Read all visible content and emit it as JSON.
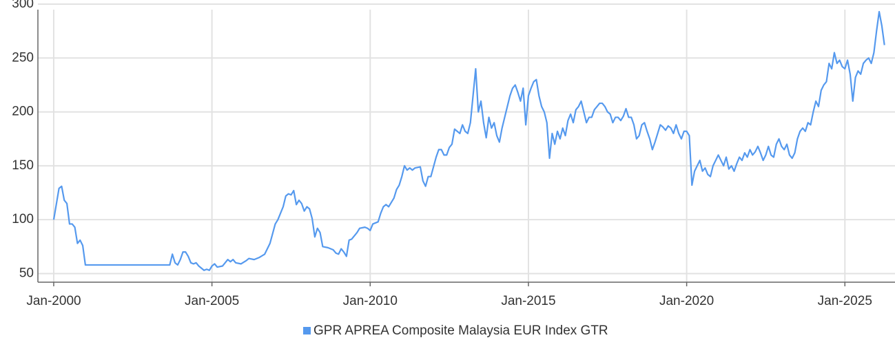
{
  "chart_data": {
    "type": "line",
    "x": [
      "2000-01",
      "2000-03",
      "2000-04",
      "2000-05",
      "2000-06",
      "2000-07",
      "2000-08",
      "2000-09",
      "2000-10",
      "2000-11",
      "2000-12",
      "2001-01",
      "2003-09",
      "2003-10",
      "2003-11",
      "2003-12",
      "2004-01",
      "2004-02",
      "2004-03",
      "2004-04",
      "2004-05",
      "2004-06",
      "2004-07",
      "2004-08",
      "2004-09",
      "2004-10",
      "2004-11",
      "2004-12",
      "2005-01",
      "2005-02",
      "2005-03",
      "2005-05",
      "2005-06",
      "2005-07",
      "2005-08",
      "2005-09",
      "2005-10",
      "2005-12",
      "2006-02",
      "2006-03",
      "2006-05",
      "2006-07",
      "2006-09",
      "2006-11",
      "2007-01",
      "2007-02",
      "2007-04",
      "2007-05",
      "2007-06",
      "2007-07",
      "2007-08",
      "2007-09",
      "2007-10",
      "2007-11",
      "2007-12",
      "2008-01",
      "2008-02",
      "2008-03",
      "2008-04",
      "2008-05",
      "2008-06",
      "2008-07",
      "2008-09",
      "2008-11",
      "2008-12",
      "2009-01",
      "2009-02",
      "2009-03",
      "2009-04",
      "2009-05",
      "2009-06",
      "2009-08",
      "2009-09",
      "2009-11",
      "2009-12",
      "2010-01",
      "2010-02",
      "2010-04",
      "2010-05",
      "2010-06",
      "2010-07",
      "2010-08",
      "2010-10",
      "2010-11",
      "2010-12",
      "2011-01",
      "2011-02",
      "2011-03",
      "2011-04",
      "2011-05",
      "2011-06",
      "2011-08",
      "2011-09",
      "2011-10",
      "2011-11",
      "2011-12",
      "2012-02",
      "2012-03",
      "2012-04",
      "2012-05",
      "2012-06",
      "2012-07",
      "2012-08",
      "2012-09",
      "2012-10",
      "2012-11",
      "2012-12",
      "2013-01",
      "2013-02",
      "2013-03",
      "2013-04",
      "2013-05",
      "2013-06",
      "2013-07",
      "2013-08",
      "2013-09",
      "2013-10",
      "2013-11",
      "2013-12",
      "2014-01",
      "2014-02",
      "2014-03",
      "2014-04",
      "2014-05",
      "2014-06",
      "2014-07",
      "2014-08",
      "2014-09",
      "2014-10",
      "2014-11",
      "2014-12",
      "2015-01",
      "2015-02",
      "2015-03",
      "2015-04",
      "2015-05",
      "2015-06",
      "2015-07",
      "2015-08",
      "2015-09",
      "2015-10",
      "2015-11",
      "2015-12",
      "2016-01",
      "2016-02",
      "2016-03",
      "2016-04",
      "2016-05",
      "2016-06",
      "2016-07",
      "2016-08",
      "2016-09",
      "2016-10",
      "2016-11",
      "2016-12",
      "2017-01",
      "2017-02",
      "2017-03",
      "2017-04",
      "2017-05",
      "2017-06",
      "2017-07",
      "2017-08",
      "2017-09",
      "2017-10",
      "2017-11",
      "2017-12",
      "2018-01",
      "2018-02",
      "2018-03",
      "2018-04",
      "2018-05",
      "2018-06",
      "2018-07",
      "2018-08",
      "2018-09",
      "2018-10",
      "2018-11",
      "2018-12",
      "2019-01",
      "2019-02",
      "2019-03",
      "2019-04",
      "2019-05",
      "2019-06",
      "2019-07",
      "2019-08",
      "2019-09",
      "2019-10",
      "2019-11",
      "2019-12",
      "2020-01",
      "2020-02",
      "2020-03",
      "2020-04",
      "2020-05",
      "2020-06",
      "2020-07",
      "2020-08",
      "2020-09",
      "2020-10",
      "2020-11",
      "2020-12",
      "2021-01",
      "2021-02",
      "2021-03",
      "2021-04",
      "2021-05",
      "2021-06",
      "2021-07",
      "2021-08",
      "2021-09",
      "2021-10",
      "2021-11",
      "2021-12",
      "2022-01",
      "2022-02",
      "2022-03",
      "2022-04",
      "2022-05",
      "2022-06",
      "2022-07",
      "2022-08",
      "2022-09",
      "2022-10",
      "2022-11",
      "2022-12",
      "2023-01",
      "2023-02",
      "2023-03",
      "2023-04",
      "2023-05",
      "2023-06",
      "2023-07",
      "2023-08",
      "2023-09",
      "2023-10",
      "2023-11",
      "2023-12",
      "2024-01",
      "2024-02",
      "2024-03",
      "2024-04",
      "2024-05",
      "2024-06",
      "2024-07",
      "2024-08",
      "2024-09",
      "2024-10",
      "2024-11",
      "2024-12",
      "2025-01",
      "2025-02",
      "2025-03",
      "2025-04",
      "2025-05",
      "2025-06",
      "2025-07",
      "2025-08",
      "2025-09",
      "2025-10",
      "2025-11",
      "2025-12",
      "2026-01",
      "2026-02",
      "2026-03",
      "2026-04"
    ],
    "series": [
      {
        "name": "GPR APREA Composite Malaysia EUR Index GTR",
        "color": "#5599ee",
        "values": [
          100,
          129,
          131,
          118,
          115,
          96,
          96,
          93,
          78,
          81,
          76,
          58,
          58,
          68,
          60,
          58,
          63,
          70,
          70,
          66,
          60,
          59,
          60,
          57,
          55,
          53,
          54,
          53,
          57,
          59,
          56,
          57,
          60,
          63,
          61,
          63,
          60,
          59,
          62,
          64,
          63,
          65,
          68,
          78,
          96,
          100,
          112,
          122,
          124,
          123,
          127,
          114,
          118,
          115,
          108,
          112,
          110,
          101,
          84,
          92,
          88,
          75,
          74,
          72,
          69,
          68,
          73,
          70,
          66,
          81,
          82,
          88,
          92,
          93,
          92,
          90,
          96,
          98,
          106,
          112,
          114,
          112,
          120,
          128,
          132,
          140,
          150,
          146,
          148,
          146,
          148,
          149,
          136,
          131,
          140,
          140,
          158,
          165,
          165,
          160,
          160,
          167,
          170,
          184,
          182,
          180,
          188,
          182,
          180,
          190,
          215,
          240,
          200,
          210,
          190,
          176,
          195,
          185,
          190,
          178,
          172,
          185,
          195,
          205,
          215,
          222,
          225,
          218,
          210,
          222,
          188,
          215,
          222,
          228,
          230,
          215,
          205,
          200,
          190,
          157,
          180,
          170,
          182,
          175,
          185,
          178,
          192,
          198,
          190,
          202,
          205,
          210,
          200,
          190,
          195,
          195,
          202,
          205,
          208,
          208,
          205,
          200,
          198,
          190,
          195,
          195,
          192,
          196,
          203,
          195,
          195,
          188,
          175,
          178,
          188,
          190,
          182,
          175,
          165,
          172,
          180,
          188,
          186,
          183,
          187,
          185,
          180,
          188,
          180,
          175,
          182,
          182,
          178,
          132,
          145,
          150,
          155,
          145,
          148,
          142,
          140,
          150,
          155,
          160,
          155,
          150,
          158,
          147,
          150,
          145,
          152,
          158,
          155,
          162,
          158,
          165,
          160,
          163,
          168,
          162,
          155,
          160,
          168,
          160,
          158,
          170,
          175,
          168,
          165,
          170,
          160,
          157,
          162,
          175,
          182,
          185,
          182,
          190,
          188,
          200,
          210,
          205,
          220,
          225,
          228,
          245,
          240,
          255,
          245,
          248,
          242,
          240,
          248,
          235,
          210,
          232,
          238,
          235,
          245,
          248,
          250,
          245,
          255,
          275,
          293,
          280,
          262
        ]
      }
    ],
    "xlim": [
      "1999-07",
      "2026-08"
    ],
    "xticks": [
      {
        "value": "2000-01",
        "label": "Jan-2000"
      },
      {
        "value": "2005-01",
        "label": "Jan-2005"
      },
      {
        "value": "2010-01",
        "label": "Jan-2010"
      },
      {
        "value": "2015-01",
        "label": "Jan-2015"
      },
      {
        "value": "2020-01",
        "label": "Jan-2020"
      },
      {
        "value": "2025-01",
        "label": "Jan-2025"
      }
    ],
    "ylim": [
      42,
      300
    ],
    "yticks": [
      50,
      100,
      150,
      200,
      250,
      300
    ],
    "grid": true
  }
}
